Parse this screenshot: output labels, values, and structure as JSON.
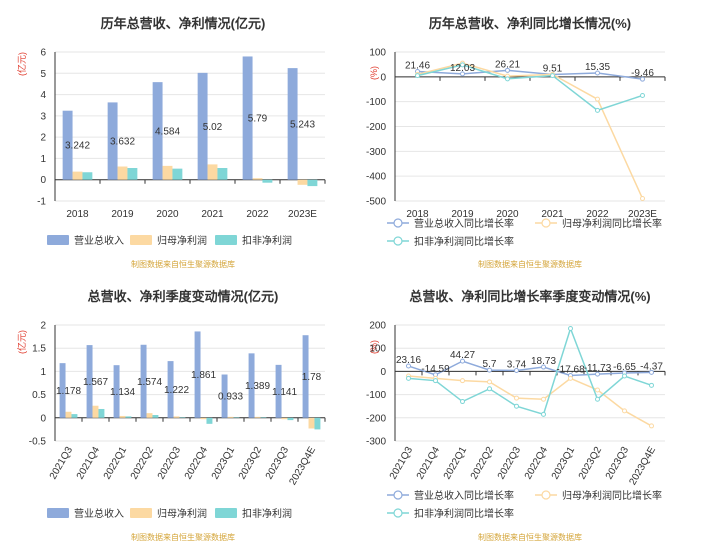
{
  "colors": {
    "revenue": "#8eaadb",
    "net_profit": "#fcd9a2",
    "deducted_profit": "#7fd6d6",
    "unit_red": "#e0392b",
    "source_gold": "#d4a53a"
  },
  "chart_data": [
    {
      "id": "annual_amount",
      "type": "bar",
      "title": "历年总营收、净利情况(亿元)",
      "ylabel": "亿元",
      "ylim": [
        -1,
        6
      ],
      "yticks": [
        -1,
        0,
        1,
        2,
        3,
        4,
        5,
        6
      ],
      "categories": [
        "2018",
        "2019",
        "2020",
        "2021",
        "2022",
        "2023E"
      ],
      "series": [
        {
          "name": "营业总收入",
          "values": [
            3.242,
            3.632,
            4.584,
            5.02,
            5.79,
            5.243
          ],
          "labels": [
            "3.242",
            "3.632",
            "4.584",
            "5.02",
            "5.79",
            "5.243"
          ]
        },
        {
          "name": "归母净利润",
          "values": [
            0.38,
            0.62,
            0.65,
            0.72,
            0.07,
            -0.24
          ]
        },
        {
          "name": "扣非净利润",
          "values": [
            0.35,
            0.55,
            0.52,
            0.55,
            -0.14,
            -0.3
          ]
        }
      ],
      "source": "制图数据来自恒生聚源数据库"
    },
    {
      "id": "annual_growth",
      "type": "line",
      "title": "历年总营收、净利同比增长情况(%)",
      "ylabel": "%",
      "ylim": [
        -500,
        100
      ],
      "yticks": [
        -500,
        -400,
        -300,
        -200,
        -100,
        0,
        100
      ],
      "categories": [
        "2018",
        "2019",
        "2020",
        "2021",
        "2022",
        "2023E"
      ],
      "series": [
        {
          "name": "营业总收入同比增长率",
          "values": [
            21.46,
            12.03,
            26.21,
            9.51,
            15.35,
            -9.46
          ],
          "labels": [
            "21.46",
            "12.03",
            "26.21",
            "9.51",
            "15.35",
            "-9.46"
          ]
        },
        {
          "name": "归母净利润同比增长率",
          "values": [
            10,
            55,
            3,
            10,
            -90,
            -490
          ]
        },
        {
          "name": "扣非净利润同比增长率",
          "values": [
            5,
            48,
            -8,
            5,
            -135,
            -75
          ]
        }
      ],
      "source": "制图数据来自恒生聚源数据库"
    },
    {
      "id": "quarterly_amount",
      "type": "bar",
      "title": "总营收、净利季度变动情况(亿元)",
      "ylabel": "亿元",
      "ylim": [
        -0.5,
        2
      ],
      "yticks": [
        -0.5,
        0,
        0.5,
        1,
        1.5,
        2
      ],
      "categories": [
        "2021Q3",
        "2021Q4",
        "2022Q1",
        "2022Q2",
        "2022Q3",
        "2022Q4",
        "2023Q1",
        "2023Q2",
        "2023Q3",
        "2023Q4E"
      ],
      "series": [
        {
          "name": "营业总收入",
          "values": [
            1.178,
            1.567,
            1.134,
            1.574,
            1.222,
            1.861,
            0.933,
            1.389,
            1.141,
            1.78
          ],
          "labels": [
            "1.178",
            "1.567",
            "1.134",
            "1.574",
            "1.222",
            "1.861",
            "0.933",
            "1.389",
            "1.141",
            "1.78"
          ]
        },
        {
          "name": "归母净利润",
          "values": [
            0.13,
            0.26,
            0.04,
            0.1,
            0.03,
            -0.03,
            0.02,
            0.02,
            -0.03,
            -0.23
          ]
        },
        {
          "name": "扣非净利润",
          "values": [
            0.08,
            0.19,
            0.03,
            0.06,
            0.01,
            -0.13,
            0.01,
            0.01,
            -0.05,
            -0.25
          ]
        }
      ],
      "source": "制图数据来自恒生聚源数据库"
    },
    {
      "id": "quarterly_growth",
      "type": "line",
      "title": "总营收、净利同比增长率季度变动情况(%)",
      "ylabel": "%",
      "ylim": [
        -300,
        200
      ],
      "yticks": [
        -300,
        -200,
        -100,
        0,
        100,
        200
      ],
      "categories": [
        "2021Q3",
        "2021Q4",
        "2022Q1",
        "2022Q2",
        "2022Q3",
        "2022Q4",
        "2023Q1",
        "2023Q2",
        "2023Q3",
        "2023Q4E"
      ],
      "series": [
        {
          "name": "营业总收入同比增长率",
          "values": [
            23.16,
            -14.59,
            44.27,
            5.7,
            3.74,
            18.73,
            -17.68,
            -11.73,
            -6.65,
            -4.37
          ],
          "labels": [
            "23.16",
            "-14.59",
            "44.27",
            "5.7",
            "3.74",
            "18.73",
            "-17.68",
            "-11.73",
            "-6.65",
            "-4.37"
          ]
        },
        {
          "name": "归母净利润同比增长率",
          "values": [
            -20,
            -30,
            -40,
            -45,
            -115,
            -120,
            -30,
            -80,
            -170,
            -235
          ]
        },
        {
          "name": "扣非净利润同比增长率",
          "values": [
            -30,
            -40,
            -130,
            -75,
            -150,
            -185,
            185,
            -120,
            -20,
            -60
          ]
        }
      ],
      "source": "制图数据来自恒生聚源数据库"
    }
  ]
}
